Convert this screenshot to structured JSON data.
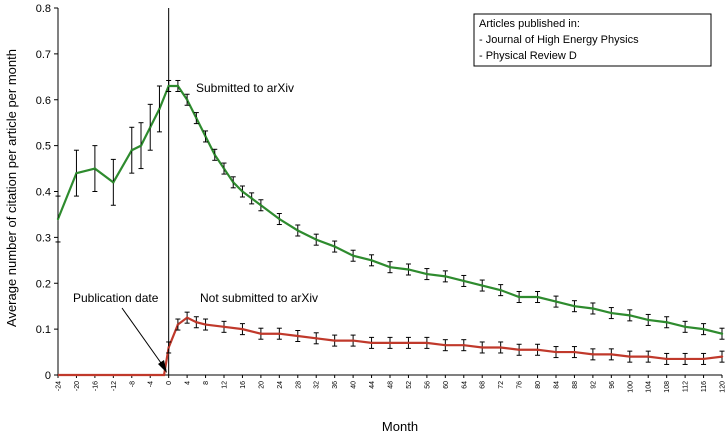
{
  "chart_data": {
    "type": "line",
    "title": "",
    "xlabel": "Month",
    "ylabel": "Average number of citation per article per month",
    "xlim": [
      -24,
      120
    ],
    "ylim": [
      0,
      0.8
    ],
    "y_ticks": [
      "0",
      "0.1",
      "0.2",
      "0.3",
      "0.4",
      "0.5",
      "0.6",
      "0.7",
      "0.8"
    ],
    "x_ticks": [
      "-24",
      "-20",
      "-16",
      "-12",
      "-8",
      "-4",
      "0",
      "4",
      "8",
      "12",
      "16",
      "20",
      "24",
      "28",
      "32",
      "36",
      "40",
      "44",
      "48",
      "52",
      "56",
      "60",
      "64",
      "68",
      "72",
      "76",
      "80",
      "84",
      "88",
      "92",
      "96",
      "100",
      "104",
      "108",
      "112",
      "116",
      "120"
    ],
    "grid": false,
    "legend_placement": "top-right",
    "legend": {
      "title": "Articles published in:",
      "entries": [
        "- Journal of High Energy Physics",
        "- Physical Review D"
      ]
    },
    "annotations": [
      {
        "text": "Submitted to arXiv"
      },
      {
        "text": "Not submitted to arXiv"
      },
      {
        "text": "Publication date"
      }
    ],
    "series": [
      {
        "label": "Submitted to arXiv",
        "color": "#2e8b2e",
        "x": [
          -24,
          -20,
          -16,
          -12,
          -8,
          -6,
          -4,
          -2,
          0,
          2,
          4,
          6,
          8,
          10,
          12,
          14,
          16,
          18,
          20,
          24,
          28,
          32,
          36,
          40,
          44,
          48,
          52,
          56,
          60,
          64,
          68,
          72,
          76,
          80,
          84,
          88,
          92,
          96,
          100,
          104,
          108,
          112,
          116,
          120
        ],
        "y": [
          0.34,
          0.44,
          0.45,
          0.42,
          0.49,
          0.5,
          0.54,
          0.58,
          0.63,
          0.63,
          0.6,
          0.56,
          0.52,
          0.48,
          0.45,
          0.42,
          0.4,
          0.385,
          0.37,
          0.34,
          0.315,
          0.295,
          0.28,
          0.26,
          0.25,
          0.235,
          0.23,
          0.22,
          0.215,
          0.205,
          0.195,
          0.185,
          0.17,
          0.17,
          0.16,
          0.15,
          0.145,
          0.135,
          0.13,
          0.12,
          0.115,
          0.105,
          0.1,
          0.09
        ]
      },
      {
        "label": "Not submitted to arXiv",
        "color": "#c0392b",
        "x": [
          -24,
          -4,
          -1,
          0,
          2,
          4,
          6,
          8,
          12,
          16,
          20,
          24,
          28,
          32,
          36,
          40,
          44,
          48,
          52,
          56,
          60,
          64,
          68,
          72,
          76,
          80,
          84,
          88,
          92,
          96,
          100,
          104,
          108,
          112,
          116,
          120
        ],
        "y": [
          0,
          0,
          0,
          0.06,
          0.11,
          0.125,
          0.115,
          0.11,
          0.105,
          0.1,
          0.09,
          0.09,
          0.085,
          0.08,
          0.075,
          0.075,
          0.07,
          0.07,
          0.07,
          0.07,
          0.065,
          0.065,
          0.06,
          0.06,
          0.055,
          0.055,
          0.05,
          0.05,
          0.045,
          0.045,
          0.04,
          0.04,
          0.035,
          0.035,
          0.035,
          0.04
        ]
      }
    ]
  }
}
